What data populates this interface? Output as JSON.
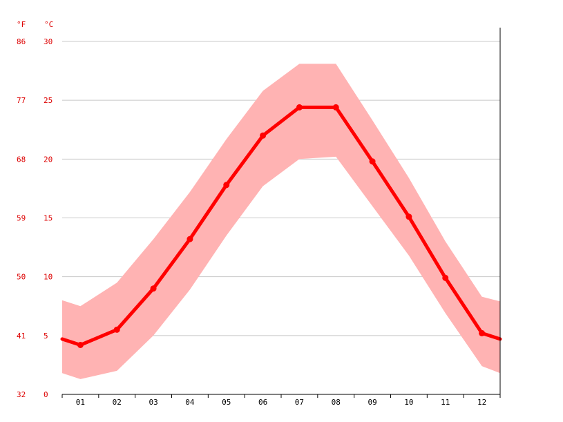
{
  "chart_data": {
    "type": "area",
    "title": "",
    "x_categories": [
      "01",
      "02",
      "03",
      "04",
      "05",
      "06",
      "07",
      "08",
      "09",
      "10",
      "11",
      "12"
    ],
    "y_unit_left_outer": "°F",
    "y_unit_left_inner": "°C",
    "y_ticks_c": [
      "0",
      "5",
      "10",
      "15",
      "20",
      "25",
      "30"
    ],
    "y_ticks_f": [
      "32",
      "41",
      "50",
      "59",
      "68",
      "77",
      "86"
    ],
    "ylim_c": [
      0,
      30
    ],
    "grid": true,
    "series": [
      {
        "kind": "line",
        "color": "#ff0000",
        "values": [
          4.2,
          5.5,
          9.0,
          13.2,
          17.8,
          22.0,
          24.4,
          24.4,
          19.8,
          15.1,
          9.9,
          5.2
        ]
      },
      {
        "kind": "band",
        "color": "#ffb3b3",
        "upper": [
          7.5,
          9.5,
          13.2,
          17.2,
          21.7,
          25.8,
          28.1,
          28.1,
          23.3,
          18.4,
          13.0,
          8.3
        ],
        "lower": [
          1.3,
          2.0,
          5.0,
          8.9,
          13.5,
          17.7,
          20.0,
          20.2,
          16.0,
          11.8,
          6.9,
          2.4
        ]
      }
    ],
    "edge_values": {
      "line_start": 4.7,
      "line_end": 4.7,
      "upper_start": 8.0,
      "upper_end": 7.9,
      "lower_start": 1.8,
      "lower_end": 1.8
    }
  }
}
